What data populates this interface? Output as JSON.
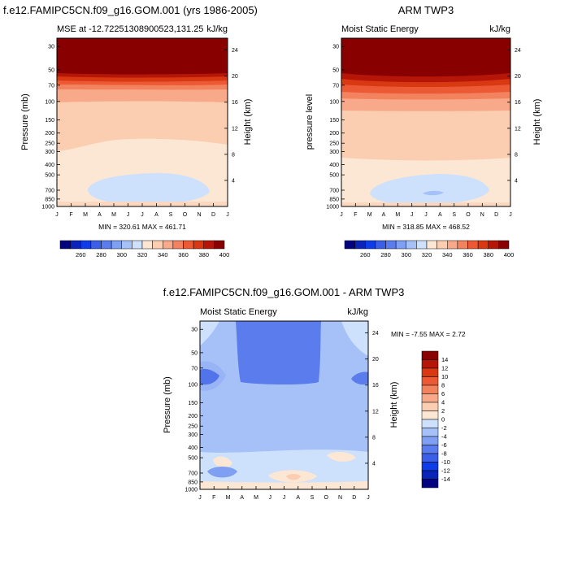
{
  "colors": {
    "palette": [
      "#03037f",
      "#0a23b9",
      "#0d3ce8",
      "#3b5fe6",
      "#5b7cec",
      "#7f9ff2",
      "#a6c1f8",
      "#cde0fc",
      "#fce7d4",
      "#fbcdb1",
      "#f8a989",
      "#f3835f",
      "#eb5a34",
      "#d83812",
      "#b51607",
      "#880000"
    ],
    "diff_palette": [
      "#03037f",
      "#0a23b9",
      "#0d3ce8",
      "#3b5fe6",
      "#5b7cec",
      "#7f9ff2",
      "#a6c1f8",
      "#cde0fc",
      "#fce7d4",
      "#fbcdb1",
      "#f8a989",
      "#f3835f",
      "#eb5a34",
      "#d83812",
      "#b51607",
      "#880000"
    ]
  },
  "chart_data": [
    {
      "type": "heatmap",
      "title": "f.e12.FAMIPC5CN.f09_g16.GOM.001 (yrs 1986-2005)",
      "left_string": "MSE at -12.72251308900523,131.25",
      "right_string": "kJ/kg",
      "ylabel": "Pressure (mb)",
      "ylabel_right": "Height (km)",
      "x_ticks": [
        "J",
        "F",
        "M",
        "A",
        "M",
        "J",
        "J",
        "A",
        "S",
        "O",
        "N",
        "D",
        "J"
      ],
      "y_ticks": [
        "30",
        "50",
        "70",
        "100",
        "150",
        "200",
        "250",
        "300",
        "400",
        "500",
        "700",
        "850",
        "1000"
      ],
      "y_ticks_right": [
        "24",
        "20",
        "16",
        "12",
        "8",
        "4"
      ],
      "minmax": "MIN = 320.61 MAX = 461.71",
      "colorbar_labels": [
        "260",
        "280",
        "300",
        "320",
        "340",
        "360",
        "380",
        "400"
      ],
      "ylim": [
        1000,
        25
      ],
      "contour_levels": [
        250,
        260,
        270,
        280,
        290,
        300,
        310,
        320,
        330,
        340,
        350,
        360,
        370,
        380,
        390,
        400
      ]
    },
    {
      "type": "heatmap",
      "title": "ARM TWP3",
      "left_string": "Moist Static Energy",
      "right_string": "kJ/kg",
      "ylabel": "pressure level",
      "ylabel_right": "Height (km)",
      "x_ticks": [
        "J",
        "F",
        "M",
        "A",
        "M",
        "J",
        "J",
        "A",
        "S",
        "O",
        "N",
        "D",
        "J"
      ],
      "y_ticks": [
        "30",
        "50",
        "70",
        "100",
        "150",
        "200",
        "250",
        "300",
        "400",
        "500",
        "700",
        "850",
        "1000"
      ],
      "y_ticks_right": [
        "24",
        "20",
        "16",
        "12",
        "8",
        "4"
      ],
      "minmax": "MIN = 318.85 MAX = 468.52",
      "colorbar_labels": [
        "260",
        "280",
        "300",
        "320",
        "340",
        "360",
        "380",
        "400"
      ],
      "ylim": [
        1000,
        25
      ],
      "contour_levels": [
        250,
        260,
        270,
        280,
        290,
        300,
        310,
        320,
        330,
        340,
        350,
        360,
        370,
        380,
        390,
        400
      ]
    },
    {
      "type": "heatmap",
      "title": "f.e12.FAMIPC5CN.f09_g16.GOM.001 - ARM TWP3",
      "left_string": "Moist Static Energy",
      "right_string": "kJ/kg",
      "ylabel": "Pressure (mb)",
      "ylabel_right": "Height (km)",
      "x_ticks": [
        "J",
        "F",
        "M",
        "A",
        "M",
        "J",
        "J",
        "A",
        "S",
        "O",
        "N",
        "D",
        "J"
      ],
      "y_ticks": [
        "30",
        "50",
        "70",
        "100",
        "150",
        "200",
        "250",
        "300",
        "400",
        "500",
        "700",
        "850",
        "1000"
      ],
      "y_ticks_right": [
        "24",
        "20",
        "16",
        "12",
        "8",
        "4"
      ],
      "minmax": "MIN =  -7.55 MAX =   2.72",
      "colorbar_labels": [
        "14",
        "12",
        "10",
        "8",
        "6",
        "4",
        "2",
        "0",
        "-2",
        "-4",
        "-6",
        "-8",
        "-10",
        "-12",
        "-14"
      ],
      "ylim": [
        1000,
        25
      ],
      "contour_levels": [
        -14,
        -12,
        -10,
        -8,
        -6,
        -4,
        -2,
        0,
        2,
        4,
        6,
        8,
        10,
        12,
        14
      ]
    }
  ]
}
